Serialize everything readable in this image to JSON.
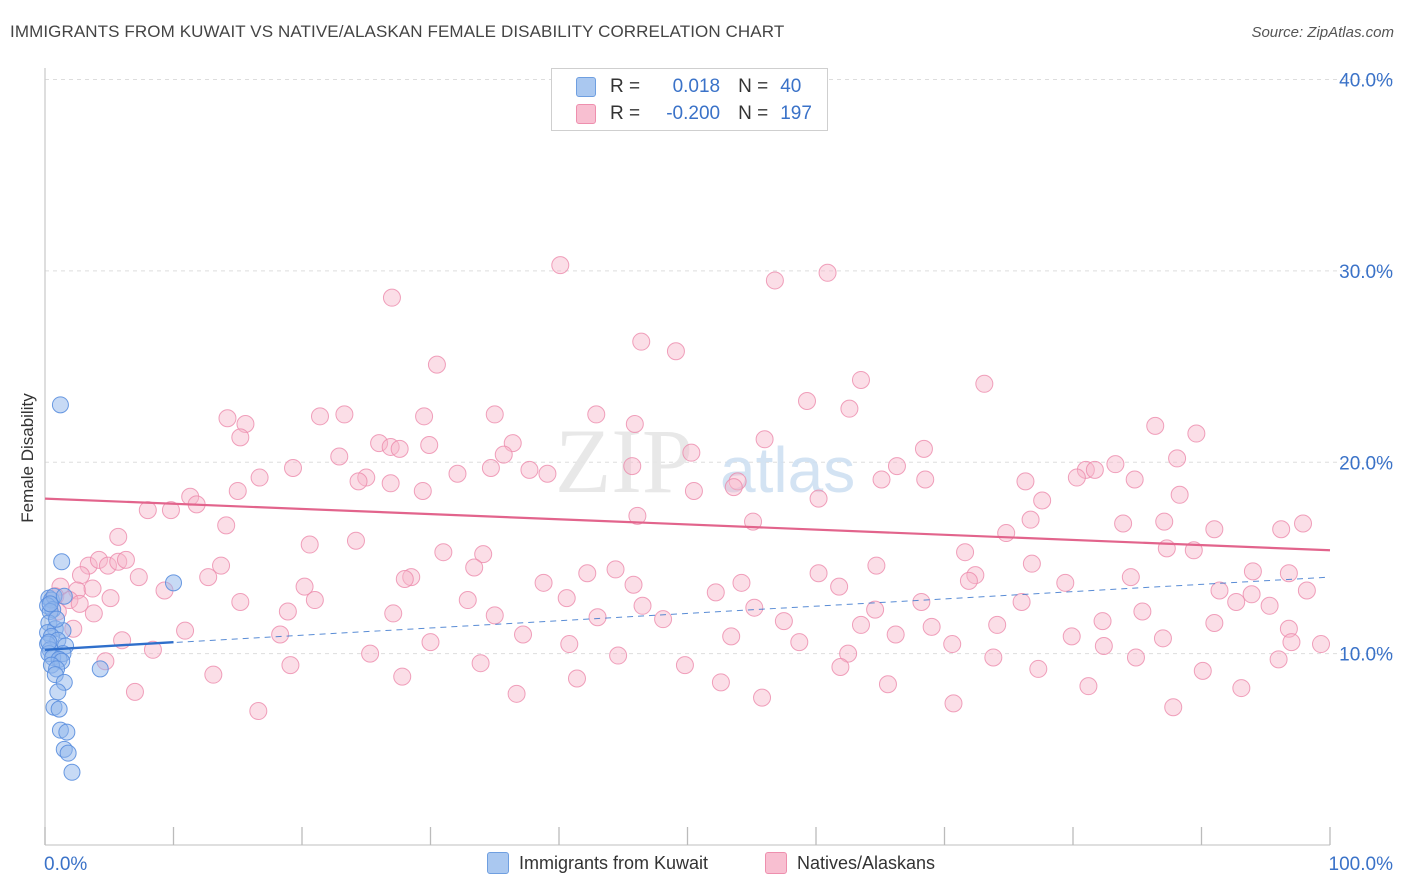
{
  "title": "IMMIGRANTS FROM KUWAIT VS NATIVE/ALASKAN FEMALE DISABILITY CORRELATION CHART",
  "source": "Source: ZipAtlas.com",
  "watermark": {
    "zip": "ZIP",
    "atlas": "atlas"
  },
  "legend": {
    "r_label": "R =",
    "n_label": "N =",
    "rows": [
      {
        "name": "Immigrants from Kuwait",
        "r": "0.018",
        "n": "40",
        "fill": "#aac8f0",
        "stroke": "#6f9fe0"
      },
      {
        "name": "Natives/Alaskans",
        "r": "-0.200",
        "n": "197",
        "fill": "#f8bfd1",
        "stroke": "#ee8fae"
      }
    ]
  },
  "colors": {
    "blue_fill": "#8fb6ec",
    "blue_stroke": "#5a8ede",
    "blue_line": "#2f6fcb",
    "pink_fill": "#f6b6ca",
    "pink_stroke": "#ec8aab",
    "pink_line": "#e2648c",
    "grid": "#dddddd",
    "tick_label": "#3a72c8"
  },
  "chart_data": {
    "type": "scatter",
    "title": "IMMIGRANTS FROM KUWAIT VS NATIVE/ALASKAN FEMALE DISABILITY CORRELATION CHART",
    "xlabel": "",
    "ylabel": "Female Disability",
    "xlim": [
      0,
      100
    ],
    "ylim": [
      0,
      40
    ],
    "x_tick_labels": [
      "0.0%",
      "100.0%"
    ],
    "y_ticks": [
      {
        "value": 10,
        "label": "10.0%"
      },
      {
        "value": 20,
        "label": "20.0%"
      },
      {
        "value": 30,
        "label": "30.0%"
      },
      {
        "value": 40,
        "label": "40.0%"
      }
    ],
    "series": [
      {
        "name": "Immigrants from Kuwait",
        "color": "blue",
        "trend": {
          "x0": 0,
          "y0": 10.2,
          "x1": 10,
          "y1": 10.6,
          "dash_x1": 0,
          "dash_y1": 10.2,
          "dash_x2": 100,
          "dash_y2": 14.0
        },
        "points": [
          [
            1.2,
            23.0
          ],
          [
            1.3,
            14.8
          ],
          [
            10.0,
            13.7
          ],
          [
            0.3,
            12.9
          ],
          [
            0.5,
            12.8
          ],
          [
            0.7,
            13.0
          ],
          [
            1.5,
            13.0
          ],
          [
            0.2,
            12.5
          ],
          [
            0.6,
            12.3
          ],
          [
            0.4,
            12.2
          ],
          [
            0.3,
            11.6
          ],
          [
            0.8,
            11.3
          ],
          [
            1.4,
            11.2
          ],
          [
            0.2,
            11.1
          ],
          [
            0.5,
            10.9
          ],
          [
            1.0,
            10.7
          ],
          [
            0.2,
            10.5
          ],
          [
            1.6,
            10.4
          ],
          [
            0.4,
            10.2
          ],
          [
            0.3,
            10.0
          ],
          [
            1.4,
            10.0
          ],
          [
            0.6,
            9.8
          ],
          [
            1.1,
            9.7
          ],
          [
            1.3,
            9.6
          ],
          [
            0.5,
            9.4
          ],
          [
            0.9,
            9.2
          ],
          [
            4.3,
            9.2
          ],
          [
            0.8,
            8.9
          ],
          [
            1.5,
            8.5
          ],
          [
            1.0,
            8.0
          ],
          [
            0.7,
            7.2
          ],
          [
            1.1,
            7.1
          ],
          [
            1.2,
            6.0
          ],
          [
            1.7,
            5.9
          ],
          [
            1.5,
            5.0
          ],
          [
            1.8,
            4.8
          ],
          [
            2.1,
            3.8
          ],
          [
            0.4,
            12.6
          ],
          [
            0.9,
            11.8
          ],
          [
            0.3,
            10.6
          ]
        ]
      },
      {
        "name": "Natives/Alaskans",
        "color": "pink",
        "trend": {
          "x0": 0,
          "y0": 18.1,
          "x1": 100,
          "y1": 15.4
        },
        "points": [
          [
            40.1,
            30.3
          ],
          [
            60.9,
            29.9
          ],
          [
            56.8,
            29.5
          ],
          [
            27.0,
            28.6
          ],
          [
            46.4,
            26.3
          ],
          [
            49.1,
            25.8
          ],
          [
            30.5,
            25.1
          ],
          [
            63.5,
            24.3
          ],
          [
            73.1,
            24.1
          ],
          [
            59.3,
            23.2
          ],
          [
            62.6,
            22.8
          ],
          [
            14.2,
            22.3
          ],
          [
            21.4,
            22.4
          ],
          [
            23.3,
            22.5
          ],
          [
            29.5,
            22.4
          ],
          [
            35.0,
            22.5
          ],
          [
            42.9,
            22.5
          ],
          [
            15.6,
            22.0
          ],
          [
            45.9,
            22.0
          ],
          [
            86.4,
            21.9
          ],
          [
            89.6,
            21.5
          ],
          [
            15.2,
            21.3
          ],
          [
            56.0,
            21.2
          ],
          [
            26.0,
            21.0
          ],
          [
            36.4,
            21.0
          ],
          [
            29.9,
            20.9
          ],
          [
            26.9,
            20.8
          ],
          [
            27.6,
            20.7
          ],
          [
            68.4,
            20.7
          ],
          [
            50.3,
            20.5
          ],
          [
            35.7,
            20.4
          ],
          [
            22.9,
            20.3
          ],
          [
            88.1,
            20.2
          ],
          [
            83.3,
            19.9
          ],
          [
            19.3,
            19.7
          ],
          [
            34.7,
            19.7
          ],
          [
            37.7,
            19.6
          ],
          [
            81.0,
            19.6
          ],
          [
            81.7,
            19.6
          ],
          [
            45.7,
            19.8
          ],
          [
            66.3,
            19.8
          ],
          [
            32.1,
            19.4
          ],
          [
            39.1,
            19.4
          ],
          [
            16.7,
            19.2
          ],
          [
            25.0,
            19.2
          ],
          [
            65.1,
            19.1
          ],
          [
            68.5,
            19.1
          ],
          [
            24.4,
            19.0
          ],
          [
            53.9,
            19.0
          ],
          [
            76.3,
            19.0
          ],
          [
            80.3,
            19.2
          ],
          [
            84.8,
            19.1
          ],
          [
            26.9,
            18.9
          ],
          [
            53.6,
            18.7
          ],
          [
            15.0,
            18.5
          ],
          [
            29.4,
            18.5
          ],
          [
            50.5,
            18.5
          ],
          [
            88.3,
            18.3
          ],
          [
            11.3,
            18.2
          ],
          [
            77.6,
            18.0
          ],
          [
            60.2,
            18.1
          ],
          [
            11.8,
            17.8
          ],
          [
            9.8,
            17.5
          ],
          [
            8.0,
            17.5
          ],
          [
            46.1,
            17.2
          ],
          [
            76.7,
            17.0
          ],
          [
            55.1,
            16.9
          ],
          [
            97.9,
            16.8
          ],
          [
            14.1,
            16.7
          ],
          [
            83.9,
            16.8
          ],
          [
            91.0,
            16.5
          ],
          [
            87.1,
            16.9
          ],
          [
            96.2,
            16.5
          ],
          [
            74.8,
            16.3
          ],
          [
            5.7,
            16.1
          ],
          [
            20.6,
            15.7
          ],
          [
            24.2,
            15.9
          ],
          [
            87.3,
            15.5
          ],
          [
            89.4,
            15.4
          ],
          [
            71.6,
            15.3
          ],
          [
            31.0,
            15.3
          ],
          [
            34.1,
            15.2
          ],
          [
            3.4,
            14.6
          ],
          [
            4.2,
            14.9
          ],
          [
            4.9,
            14.6
          ],
          [
            5.7,
            14.8
          ],
          [
            6.3,
            14.9
          ],
          [
            13.7,
            14.6
          ],
          [
            33.4,
            14.5
          ],
          [
            44.4,
            14.4
          ],
          [
            64.7,
            14.6
          ],
          [
            76.8,
            14.7
          ],
          [
            94.0,
            14.3
          ],
          [
            2.8,
            14.1
          ],
          [
            7.3,
            14.0
          ],
          [
            12.7,
            14.0
          ],
          [
            28.5,
            14.0
          ],
          [
            42.2,
            14.2
          ],
          [
            54.2,
            13.7
          ],
          [
            60.2,
            14.2
          ],
          [
            72.4,
            14.1
          ],
          [
            84.5,
            14.0
          ],
          [
            96.8,
            14.2
          ],
          [
            1.2,
            13.5
          ],
          [
            2.5,
            13.3
          ],
          [
            3.7,
            13.4
          ],
          [
            9.3,
            13.3
          ],
          [
            20.2,
            13.5
          ],
          [
            28.0,
            13.9
          ],
          [
            38.8,
            13.7
          ],
          [
            45.8,
            13.6
          ],
          [
            52.2,
            13.2
          ],
          [
            61.8,
            13.5
          ],
          [
            71.9,
            13.8
          ],
          [
            79.4,
            13.7
          ],
          [
            91.4,
            13.3
          ],
          [
            93.9,
            13.1
          ],
          [
            98.2,
            13.3
          ],
          [
            0.8,
            13.0
          ],
          [
            1.9,
            12.8
          ],
          [
            2.7,
            12.6
          ],
          [
            5.1,
            12.9
          ],
          [
            15.2,
            12.7
          ],
          [
            21.0,
            12.8
          ],
          [
            32.9,
            12.8
          ],
          [
            40.6,
            12.9
          ],
          [
            46.5,
            12.5
          ],
          [
            55.2,
            12.4
          ],
          [
            64.6,
            12.3
          ],
          [
            68.2,
            12.7
          ],
          [
            76.0,
            12.7
          ],
          [
            85.4,
            12.2
          ],
          [
            92.7,
            12.7
          ],
          [
            95.3,
            12.5
          ],
          [
            1.0,
            12.2
          ],
          [
            3.8,
            12.1
          ],
          [
            18.9,
            12.2
          ],
          [
            27.1,
            12.1
          ],
          [
            35.0,
            12.0
          ],
          [
            43.0,
            11.9
          ],
          [
            48.1,
            11.8
          ],
          [
            57.5,
            11.7
          ],
          [
            63.5,
            11.5
          ],
          [
            69.0,
            11.4
          ],
          [
            74.1,
            11.5
          ],
          [
            82.3,
            11.7
          ],
          [
            91.0,
            11.6
          ],
          [
            96.8,
            11.3
          ],
          [
            2.2,
            11.3
          ],
          [
            10.9,
            11.2
          ],
          [
            18.3,
            11.0
          ],
          [
            37.2,
            11.0
          ],
          [
            53.4,
            10.9
          ],
          [
            66.2,
            11.0
          ],
          [
            79.9,
            10.9
          ],
          [
            87.0,
            10.8
          ],
          [
            97.0,
            10.6
          ],
          [
            6.0,
            10.7
          ],
          [
            30.0,
            10.6
          ],
          [
            40.8,
            10.5
          ],
          [
            58.7,
            10.6
          ],
          [
            70.6,
            10.5
          ],
          [
            82.4,
            10.4
          ],
          [
            99.3,
            10.5
          ],
          [
            8.4,
            10.2
          ],
          [
            25.3,
            10.0
          ],
          [
            44.6,
            9.9
          ],
          [
            62.5,
            10.0
          ],
          [
            73.8,
            9.8
          ],
          [
            84.9,
            9.8
          ],
          [
            96.0,
            9.7
          ],
          [
            4.7,
            9.6
          ],
          [
            19.1,
            9.4
          ],
          [
            33.9,
            9.5
          ],
          [
            49.8,
            9.4
          ],
          [
            61.9,
            9.3
          ],
          [
            77.3,
            9.2
          ],
          [
            90.1,
            9.1
          ],
          [
            13.1,
            8.9
          ],
          [
            27.8,
            8.8
          ],
          [
            41.4,
            8.7
          ],
          [
            52.6,
            8.5
          ],
          [
            65.6,
            8.4
          ],
          [
            81.2,
            8.3
          ],
          [
            93.1,
            8.2
          ],
          [
            7.0,
            8.0
          ],
          [
            36.7,
            7.9
          ],
          [
            55.8,
            7.7
          ],
          [
            70.7,
            7.4
          ],
          [
            87.8,
            7.2
          ],
          [
            16.6,
            7.0
          ]
        ]
      }
    ]
  }
}
